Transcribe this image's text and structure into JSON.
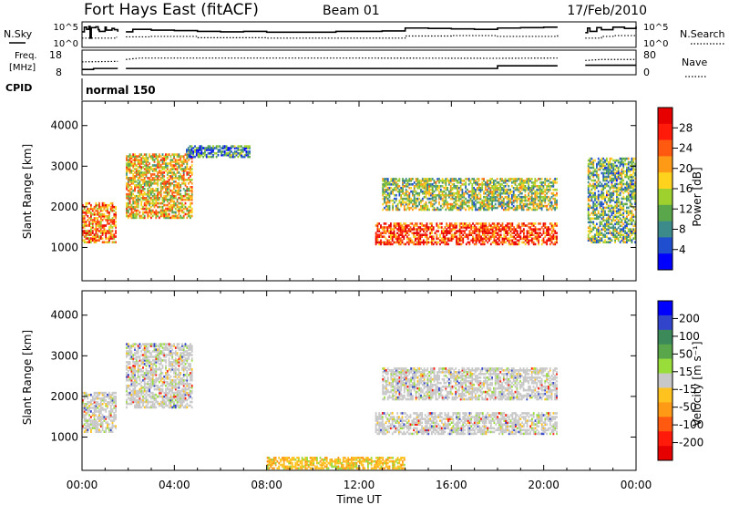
{
  "header": {
    "title": "Fort Hays East (fitACF)",
    "beam": "Beam 01",
    "date": "17/Feb/2010"
  },
  "colors": {
    "gap": "#ffffff",
    "axis": "#000000"
  },
  "chart_data": [
    {
      "type": "line",
      "panel": "noise",
      "left_label": "N.Sky",
      "right_label": "N.Search",
      "left_ticks": [
        "10^5",
        "10^0"
      ],
      "right_ticks": [
        "10^5",
        "10^0"
      ],
      "x_range_hours": [
        0,
        24
      ],
      "data_gaps_hours": [
        [
          1.55,
          1.9
        ],
        [
          20.6,
          21.8
        ]
      ],
      "series": [
        {
          "name": "N.Sky",
          "style": "solid",
          "x": [
            0,
            0.1,
            0.2,
            0.3,
            0.35,
            0.4,
            0.6,
            0.7,
            0.75,
            1.0,
            1.05,
            1.3,
            1.4,
            1.55,
            1.9,
            2.2,
            3.0,
            4.0,
            5.0,
            6.0,
            7.0,
            8.0,
            9.0,
            10.0,
            11.0,
            12.0,
            13.0,
            14.0,
            15.0,
            16.0,
            17.0,
            18.0,
            19.0,
            20.0,
            20.6,
            21.8,
            21.9,
            22.0,
            22.3,
            22.5,
            23.0,
            23.5,
            24.0
          ],
          "y": [
            3.5,
            4.6,
            4.1,
            4.8,
            2.0,
            4.5,
            4.7,
            4.0,
            3.6,
            4.6,
            3.9,
            4.3,
            4.0,
            3.5,
            3.5,
            4.1,
            3.9,
            3.8,
            3.6,
            3.5,
            3.6,
            3.4,
            3.4,
            3.4,
            3.6,
            3.6,
            3.7,
            4.4,
            4.3,
            4.2,
            4.1,
            4.4,
            4.5,
            4.6,
            4.6,
            3.3,
            4.4,
            3.6,
            4.5,
            4.0,
            4.6,
            4.3,
            4.8
          ]
        },
        {
          "name": "N.Search",
          "style": "dotted",
          "x": [
            0,
            1.5,
            1.9,
            3.0,
            5.0,
            8.0,
            10.0,
            12.0,
            14.0,
            16.0,
            18.0,
            20.6,
            21.8,
            22.5,
            23.0,
            24.0
          ],
          "y": [
            2.0,
            2.3,
            2.3,
            2.4,
            2.1,
            2.0,
            2.0,
            2.0,
            2.5,
            2.6,
            2.4,
            2.8,
            2.0,
            2.4,
            2.6,
            2.6
          ]
        }
      ]
    },
    {
      "type": "line",
      "panel": "frequency",
      "left_label": "Freq. [MHz]",
      "right_label": "Nave",
      "left_ticks": [
        18,
        8
      ],
      "right_ticks": [
        80,
        0
      ],
      "ylim_left": [
        8,
        18
      ],
      "ylim_right": [
        0,
        80
      ],
      "series": [
        {
          "name": "Freq.",
          "style": "solid",
          "x": [
            0,
            0.5,
            0.5,
            1.55,
            1.9,
            18.0,
            18.0,
            20.6,
            21.8,
            24.0
          ],
          "y": [
            10.3,
            10.3,
            10.8,
            10.8,
            10.8,
            10.8,
            12.2,
            12.2,
            12.5,
            12.5
          ]
        },
        {
          "name": "Nave",
          "style": "dotted",
          "x": [
            0,
            1.55,
            1.9,
            2.5,
            12.0,
            18.0,
            20.6,
            21.8,
            22.5,
            24.0
          ],
          "y": [
            50,
            52,
            60,
            66,
            66,
            65,
            66,
            56,
            60,
            60
          ]
        }
      ]
    },
    {
      "type": "table",
      "panel": "cpid",
      "label": "CPID",
      "value": "normal 150"
    },
    {
      "type": "heatmap",
      "panel": "power",
      "ylabel": "Slant Range [km]",
      "yticks": [
        1000,
        2000,
        3000,
        4000
      ],
      "ylim_km": [
        180,
        4600
      ],
      "x_range_hours": [
        0,
        24
      ],
      "colorbar": {
        "label": "Power [dB]",
        "ticks": [
          4,
          8,
          12,
          16,
          20,
          24,
          28
        ],
        "range": [
          0,
          32
        ],
        "colors": [
          "#0000ff",
          "#1f4fcf",
          "#3c8a8a",
          "#5aa64a",
          "#9ed02e",
          "#ffd21e",
          "#ff9a17",
          "#ff5a10",
          "#ff1a0a",
          "#e60000"
        ]
      },
      "echo_regions": [
        {
          "t": [
            0.0,
            1.5
          ],
          "range_km": [
            1100,
            2100
          ],
          "power_dB": 22
        },
        {
          "t": [
            1.9,
            4.8
          ],
          "range_km": [
            1700,
            3300
          ],
          "power_dB": 18
        },
        {
          "t": [
            4.5,
            7.3
          ],
          "range_km": [
            3200,
            3500
          ],
          "power_dB": 8
        },
        {
          "t": [
            12.7,
            20.6
          ],
          "range_km": [
            1050,
            1600
          ],
          "power_dB": 26
        },
        {
          "t": [
            13.0,
            20.6
          ],
          "range_km": [
            1900,
            2700
          ],
          "power_dB": 14
        },
        {
          "t": [
            21.9,
            24.0
          ],
          "range_km": [
            1100,
            3200
          ],
          "power_dB": 12
        }
      ]
    },
    {
      "type": "heatmap",
      "panel": "velocity",
      "ylabel": "Slant Range [km]",
      "yticks": [
        1000,
        2000,
        3000,
        4000
      ],
      "ylim_km": [
        180,
        4600
      ],
      "x_range_hours": [
        0,
        24
      ],
      "xlabel": "Time UT",
      "xticks": [
        "00:00",
        "04:00",
        "08:00",
        "12:00",
        "16:00",
        "20:00",
        "00:00"
      ],
      "colorbar": {
        "label": "Velocity [m s⁻¹]",
        "ticks": [
          "200",
          "100",
          "50",
          "15",
          "-15",
          "-50",
          "-100",
          "-200"
        ],
        "colors": [
          "#0000ff",
          "#3344cc",
          "#3c8a5a",
          "#5aa64a",
          "#98dd3a",
          "#c8c8c8",
          "#ffc21e",
          "#ff9a17",
          "#ff5a10",
          "#ff1a0a",
          "#e60000"
        ]
      },
      "echo_regions": [
        {
          "t": [
            0.0,
            1.5
          ],
          "range_km": [
            1100,
            2100
          ],
          "velocity_ms": 0
        },
        {
          "t": [
            1.9,
            4.8
          ],
          "range_km": [
            1700,
            3300
          ],
          "velocity_ms": 0
        },
        {
          "t": [
            12.7,
            20.6
          ],
          "range_km": [
            1050,
            1600
          ],
          "velocity_ms": 0
        },
        {
          "t": [
            13.0,
            20.6
          ],
          "range_km": [
            1900,
            2700
          ],
          "velocity_ms": 0
        },
        {
          "t": [
            8.0,
            14.0
          ],
          "range_km": [
            200,
            500
          ],
          "velocity_ms": -60
        }
      ]
    }
  ]
}
